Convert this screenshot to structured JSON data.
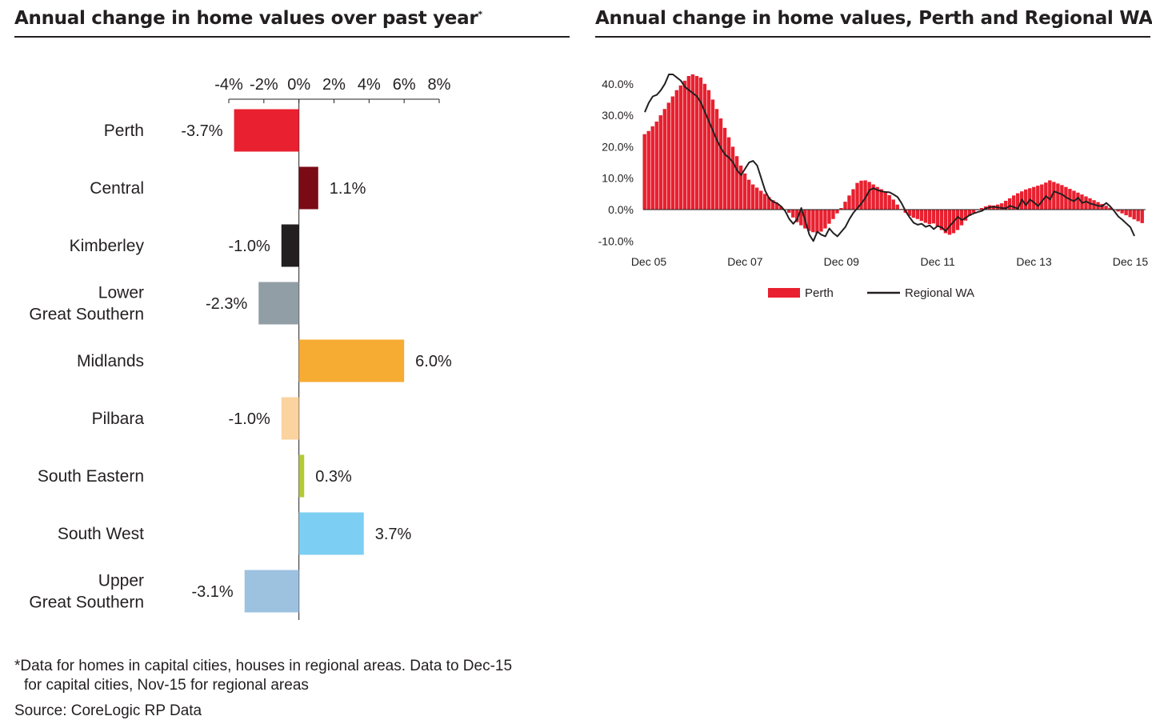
{
  "left_panel": {
    "title": "Annual change in home values over past year",
    "title_marker": "*",
    "footnote_line1": "*Data for homes in capital cities, houses in regional areas. Data to Dec-15",
    "footnote_line2": "for capital cities, Nov-15 for regional areas",
    "source": "Source: CoreLogic RP Data"
  },
  "right_panel": {
    "title": "Annual change in home values, Perth and Regional WA"
  },
  "chart_data": [
    {
      "type": "bar",
      "orientation": "horizontal",
      "xlim": [
        -4,
        8
      ],
      "x_ticks": [
        "-4%",
        "-2%",
        "0%",
        "2%",
        "4%",
        "6%",
        "8%"
      ],
      "x_tick_values": [
        -4,
        -2,
        0,
        2,
        4,
        6,
        8
      ],
      "categories": [
        "Perth",
        "Central",
        "Kimberley",
        "Lower Great Southern",
        "Midlands",
        "Pilbara",
        "South Eastern",
        "South West",
        "Upper Great Southern"
      ],
      "category_lines": [
        [
          "Perth"
        ],
        [
          "Central"
        ],
        [
          "Kimberley"
        ],
        [
          "Lower",
          "Great Southern"
        ],
        [
          "Midlands"
        ],
        [
          "Pilbara"
        ],
        [
          "South Eastern"
        ],
        [
          "South West"
        ],
        [
          "Upper",
          "Great Southern"
        ]
      ],
      "values": [
        -3.7,
        1.1,
        -1.0,
        -2.3,
        6.0,
        -1.0,
        0.3,
        3.7,
        -3.1
      ],
      "value_labels": [
        "-3.7%",
        "1.1%",
        "-1.0%",
        "-2.3%",
        "6.0%",
        "-1.0%",
        "0.3%",
        "3.7%",
        "-3.1%"
      ],
      "colors": [
        "#e8202f",
        "#7a0a14",
        "#231f20",
        "#929ea5",
        "#f6ab33",
        "#fbd39f",
        "#b5c935",
        "#7ccff2",
        "#9dc2e0"
      ]
    },
    {
      "type": "bar+line",
      "ylim": [
        -10,
        45
      ],
      "y_ticks": [
        "40.0%",
        "30.0%",
        "20.0%",
        "10.0%",
        "0.0%",
        "-10.0%"
      ],
      "y_tick_values": [
        40,
        30,
        20,
        10,
        0,
        -10
      ],
      "x_ticks": [
        "Dec 05",
        "Dec 07",
        "Dec 09",
        "Dec 11",
        "Dec 13",
        "Dec 15"
      ],
      "x_tick_months": [
        0,
        24,
        48,
        72,
        96,
        120
      ],
      "legend": [
        "Perth",
        "Regional WA"
      ],
      "legend_position": "bottom",
      "series": [
        {
          "name": "Perth",
          "type": "bar",
          "color": "#e8202f",
          "values": [
            24,
            25,
            26.5,
            28,
            30,
            32,
            34,
            36,
            38,
            39.5,
            41,
            42.5,
            43,
            42.5,
            42,
            40,
            38,
            35,
            32,
            29,
            26,
            23,
            20,
            17,
            14,
            11.5,
            9.5,
            8,
            7,
            6,
            5,
            4,
            3,
            2,
            1,
            0,
            -1,
            -2.5,
            -4,
            -5,
            -6,
            -6.8,
            -7.2,
            -7.5,
            -7,
            -6,
            -4.5,
            -3,
            -1.2,
            0.5,
            2.5,
            4.5,
            6.5,
            8.5,
            9.2,
            9.3,
            8.8,
            8,
            7.2,
            6.5,
            5.8,
            4.6,
            3.2,
            1.6,
            0.2,
            -1,
            -2,
            -2.6,
            -3,
            -3.6,
            -4.2,
            -4.6,
            -4.4,
            -5.5,
            -6.5,
            -7.5,
            -8,
            -7.5,
            -6.5,
            -5,
            -3.5,
            -2,
            -1,
            -0.2,
            0.5,
            1,
            1.4,
            1.3,
            1.6,
            2,
            2.8,
            3.6,
            4.5,
            5.2,
            5.8,
            6.4,
            6.8,
            7.2,
            7.6,
            8,
            8.6,
            9.3,
            8.8,
            8.3,
            7.8,
            7.2,
            6.6,
            6,
            5.4,
            4.8,
            4.2,
            3.6,
            3,
            2.4,
            1.8,
            1.2,
            0.6,
            0,
            -0.6,
            -1.2,
            -1.8,
            -2.4,
            -3.1,
            -3.7,
            -4.3
          ]
        },
        {
          "name": "Regional WA",
          "type": "line",
          "color": "#231f20",
          "values": [
            31,
            34,
            36,
            36.5,
            38,
            40,
            43,
            43,
            42,
            41,
            39,
            38,
            37,
            36,
            34,
            31,
            28,
            25,
            22,
            19.5,
            17.5,
            16.5,
            15,
            12.5,
            11,
            13,
            15,
            15.5,
            14,
            10,
            6,
            3.5,
            2.5,
            2,
            1,
            -0.5,
            -3,
            -4.5,
            -3,
            0.5,
            -3.5,
            -8,
            -10,
            -7,
            -8,
            -8.5,
            -6,
            -7.5,
            -8.5,
            -7,
            -5.5,
            -3,
            -1,
            0.5,
            2,
            3.8,
            6.2,
            6.8,
            6.2,
            5.8,
            5.6,
            5.5,
            4.8,
            4,
            2,
            -0.5,
            -2.5,
            -4.2,
            -4.8,
            -4.5,
            -5.5,
            -5,
            -6.2,
            -5.2,
            -5.7,
            -6.8,
            -5.2,
            -3.8,
            -2.3,
            -3.3,
            -2.6,
            -1.7,
            -1.2,
            -0.8,
            -0.4,
            0.4,
            0.8,
            0.9,
            0.7,
            0.5,
            0.4,
            1.2,
            0.8,
            0.3,
            3.2,
            1.4,
            3.2,
            2.3,
            1.1,
            2.7,
            4.3,
            3.2,
            5.8,
            5.3,
            4.8,
            3.9,
            3.2,
            2.7,
            3.8,
            2.1,
            2.6,
            1.9,
            1.6,
            1.2,
            1.1,
            2.1,
            1,
            -0.5,
            -2.2,
            -3.2,
            -4.4,
            -5.6,
            -8.4
          ]
        }
      ]
    }
  ]
}
